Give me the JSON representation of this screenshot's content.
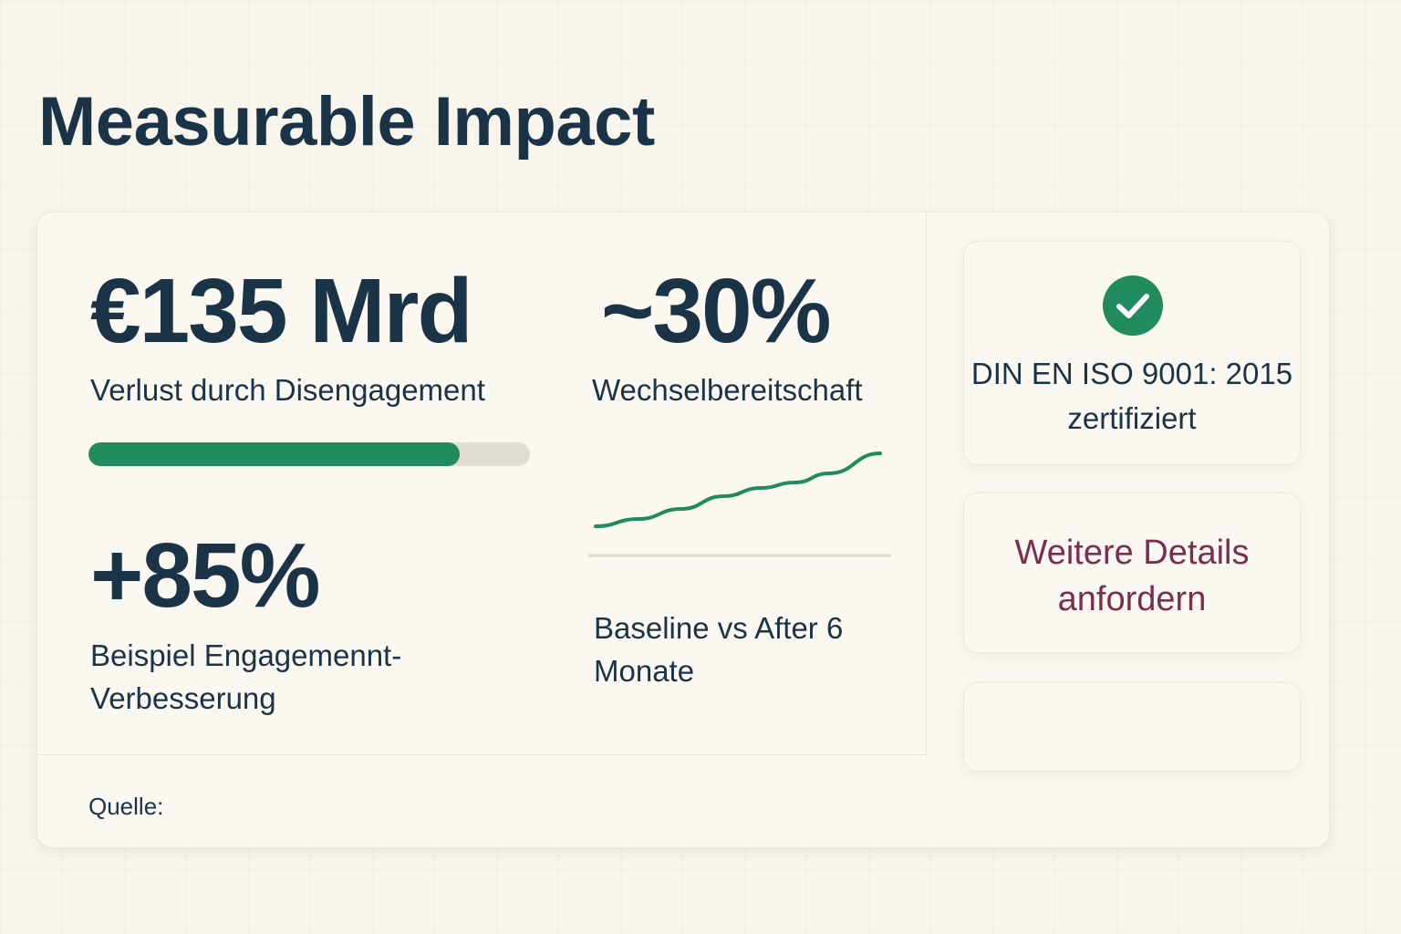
{
  "page": {
    "title": "Measurable Impact"
  },
  "stats": [
    {
      "value": "€135 Mrd",
      "label": "Verlust durch Disengagement"
    },
    {
      "value": "~30%",
      "label": "Wechselbereitschaft"
    },
    {
      "value": "+85%",
      "label": "Beispiel Engagemennt-Verbesserung"
    }
  ],
  "progress": {
    "fraction": 0.84,
    "fill_color": "#218a5f",
    "track_color": "#e2ddd2"
  },
  "trend_chart": {
    "type": "line",
    "caption": "Baseline vs After 6 Monate",
    "line_color": "#218a5f",
    "points": [
      [
        0.0,
        0.0
      ],
      [
        0.15,
        0.08
      ],
      [
        0.3,
        0.19
      ],
      [
        0.45,
        0.33
      ],
      [
        0.58,
        0.42
      ],
      [
        0.7,
        0.48
      ],
      [
        0.82,
        0.58
      ],
      [
        1.0,
        0.8
      ]
    ]
  },
  "source": {
    "label": "Quelle:"
  },
  "certification": {
    "icon": "check-circle-icon",
    "icon_color": "#218a5f",
    "text": "DIN EN ISO 9001: 2015 zertifiziert"
  },
  "cta": {
    "label": "Weitere Details anfordern",
    "color": "#7a2f4f"
  },
  "colors": {
    "text_primary": "#1b3347",
    "background": "#f8f5ec",
    "card": "#faf8f0"
  }
}
